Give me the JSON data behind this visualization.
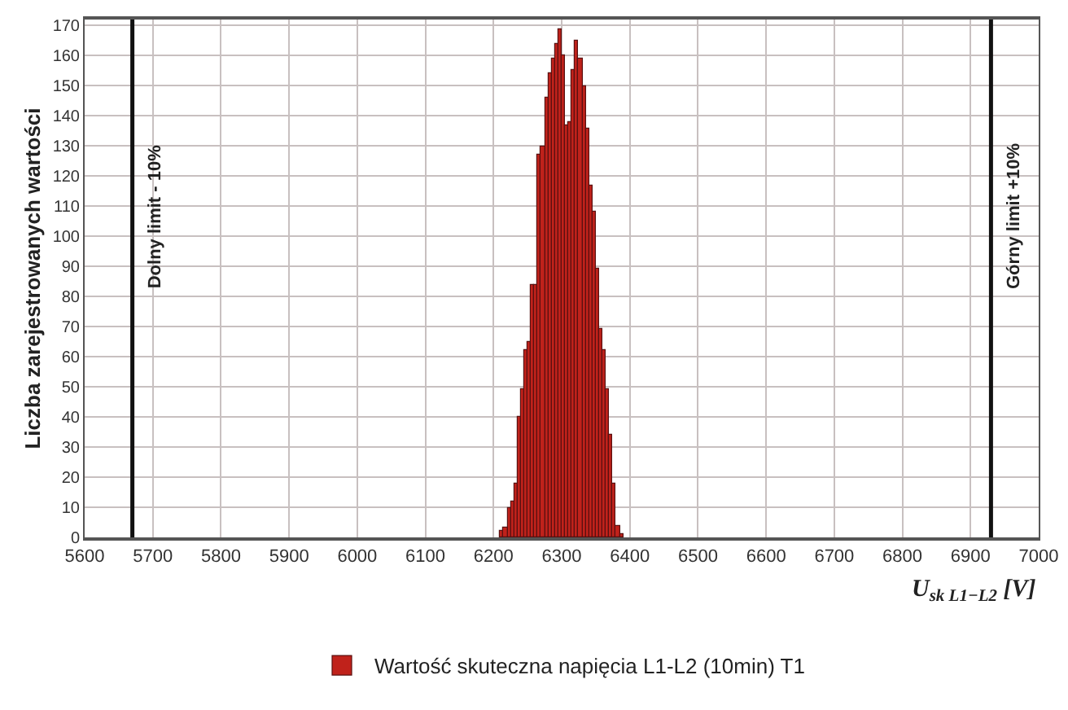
{
  "chart_data": {
    "type": "histogram",
    "ylabel": "Liczba zarejestrowanych wartości",
    "xlabel": "U$_{sk L1−L2}$ [V]",
    "bins": [
      6210,
      6215,
      6220,
      6225,
      6230,
      6235,
      6240,
      6245,
      6250,
      6255,
      6260,
      6265,
      6270,
      6275,
      6280,
      6285,
      6290,
      6295,
      6300,
      6305,
      6310,
      6315,
      6320,
      6325,
      6330,
      6335,
      6340,
      6345,
      6350,
      6355,
      6360,
      6365,
      6370,
      6375,
      6380,
      6385,
      6390
    ],
    "series": [
      {
        "name": "Wartość skuteczna napięcia L1-L2 (10min) T1",
        "color": "#c0221b",
        "values": [
          2,
          3,
          10,
          12,
          18,
          40,
          49,
          62,
          65,
          84,
          84,
          127,
          130,
          146,
          154,
          159,
          164,
          169,
          160,
          137,
          138,
          155,
          165,
          159,
          150,
          136,
          117,
          108,
          89,
          69,
          62,
          49,
          34,
          18,
          4,
          1
        ]
      }
    ],
    "xlim": [
      5600,
      7000
    ],
    "xticks": [
      5600,
      5700,
      5800,
      5900,
      6000,
      6100,
      6200,
      6300,
      6400,
      6500,
      6600,
      6700,
      6800,
      6900,
      7000
    ],
    "ylim": [
      0,
      172
    ],
    "yticks": [
      0,
      10,
      20,
      30,
      40,
      50,
      60,
      70,
      80,
      90,
      100,
      110,
      120,
      130,
      140,
      150,
      160,
      170
    ],
    "ref_lines": [
      {
        "axis": "x",
        "value": 5670,
        "label": "Dolny limit - 10%",
        "color": "#111111"
      },
      {
        "axis": "x",
        "value": 6930,
        "label": "Górny limit +10%",
        "color": "#111111"
      }
    ],
    "grid": true,
    "legend": "bottom"
  }
}
